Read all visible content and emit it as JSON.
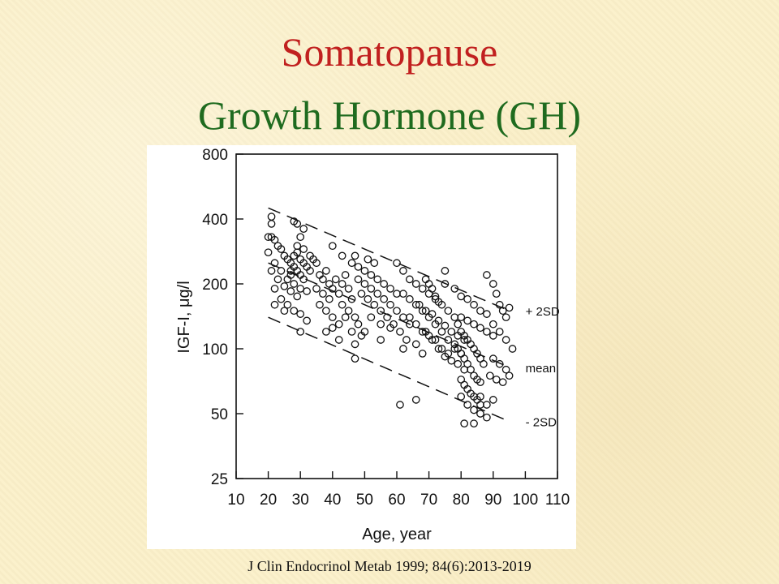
{
  "slide": {
    "title": "Somatopause",
    "subtitle": "Growth Hormone (GH)",
    "citation": "J Clin Endocrinol Metab 1999; 84(6):2013-2019",
    "colors": {
      "title": "#c1201f",
      "subtitle": "#1f6b1f",
      "background": "#fbf0c9"
    }
  },
  "chart_data": {
    "type": "scatter",
    "title": "",
    "xlabel": "Age, year",
    "ylabel": "IGF-I, μg/l",
    "xlim": [
      10,
      110
    ],
    "ylim": [
      25,
      800
    ],
    "yscale": "log",
    "xticks": [
      10,
      20,
      30,
      40,
      50,
      60,
      70,
      80,
      90,
      100,
      110
    ],
    "yticks": [
      25,
      50,
      100,
      200,
      400,
      800
    ],
    "grid": false,
    "legend": "none",
    "lines": [
      {
        "name": "+ 2SD",
        "style": "dashed",
        "x": [
          20,
          95
        ],
        "y": [
          450,
          150
        ]
      },
      {
        "name": "mean",
        "style": "dashed",
        "x": [
          20,
          95
        ],
        "y": [
          250,
          82
        ]
      },
      {
        "name": "- 2SD",
        "style": "dashed",
        "x": [
          20,
          95
        ],
        "y": [
          140,
          46
        ]
      }
    ],
    "points": [
      [
        21,
        410
      ],
      [
        21,
        380
      ],
      [
        20,
        330
      ],
      [
        21,
        330
      ],
      [
        22,
        320
      ],
      [
        23,
        300
      ],
      [
        24,
        290
      ],
      [
        25,
        270
      ],
      [
        26,
        260
      ],
      [
        27,
        250
      ],
      [
        28,
        240
      ],
      [
        29,
        230
      ],
      [
        30,
        220
      ],
      [
        31,
        210
      ],
      [
        20,
        280
      ],
      [
        22,
        250
      ],
      [
        24,
        230
      ],
      [
        26,
        210
      ],
      [
        28,
        200
      ],
      [
        30,
        190
      ],
      [
        32,
        185
      ],
      [
        23,
        210
      ],
      [
        25,
        195
      ],
      [
        27,
        185
      ],
      [
        29,
        175
      ],
      [
        21,
        230
      ],
      [
        22,
        190
      ],
      [
        24,
        170
      ],
      [
        26,
        160
      ],
      [
        28,
        150
      ],
      [
        30,
        145
      ],
      [
        32,
        135
      ],
      [
        22,
        160
      ],
      [
        25,
        150
      ],
      [
        27,
        230
      ],
      [
        28,
        270
      ],
      [
        29,
        300
      ],
      [
        30,
        330
      ],
      [
        31,
        360
      ],
      [
        28,
        390
      ],
      [
        29,
        380
      ],
      [
        30,
        260
      ],
      [
        31,
        250
      ],
      [
        32,
        240
      ],
      [
        27,
        220
      ],
      [
        29,
        280
      ],
      [
        31,
        290
      ],
      [
        33,
        270
      ],
      [
        34,
        260
      ],
      [
        33,
        230
      ],
      [
        30,
        120
      ],
      [
        35,
        250
      ],
      [
        36,
        220
      ],
      [
        37,
        210
      ],
      [
        38,
        230
      ],
      [
        39,
        200
      ],
      [
        40,
        190
      ],
      [
        35,
        190
      ],
      [
        37,
        180
      ],
      [
        39,
        170
      ],
      [
        36,
        160
      ],
      [
        38,
        150
      ],
      [
        40,
        140
      ],
      [
        41,
        210
      ],
      [
        42,
        180
      ],
      [
        43,
        200
      ],
      [
        44,
        220
      ],
      [
        45,
        190
      ],
      [
        46,
        170
      ],
      [
        43,
        160
      ],
      [
        45,
        150
      ],
      [
        47,
        140
      ],
      [
        38,
        120
      ],
      [
        40,
        125
      ],
      [
        42,
        130
      ],
      [
        44,
        140
      ],
      [
        46,
        120
      ],
      [
        48,
        130
      ],
      [
        50,
        120
      ],
      [
        42,
        110
      ],
      [
        47,
        105
      ],
      [
        49,
        115
      ],
      [
        40,
        300
      ],
      [
        43,
        270
      ],
      [
        46,
        250
      ],
      [
        48,
        240
      ],
      [
        50,
        230
      ],
      [
        52,
        220
      ],
      [
        54,
        210
      ],
      [
        56,
        200
      ],
      [
        58,
        190
      ],
      [
        60,
        180
      ],
      [
        47,
        270
      ],
      [
        51,
        260
      ],
      [
        53,
        250
      ],
      [
        48,
        210
      ],
      [
        50,
        200
      ],
      [
        52,
        190
      ],
      [
        54,
        180
      ],
      [
        56,
        170
      ],
      [
        58,
        160
      ],
      [
        60,
        150
      ],
      [
        62,
        140
      ],
      [
        64,
        130
      ],
      [
        49,
        180
      ],
      [
        51,
        170
      ],
      [
        53,
        160
      ],
      [
        55,
        150
      ],
      [
        57,
        140
      ],
      [
        59,
        130
      ],
      [
        61,
        120
      ],
      [
        63,
        110
      ],
      [
        52,
        140
      ],
      [
        55,
        130
      ],
      [
        58,
        125
      ],
      [
        62,
        100
      ],
      [
        66,
        105
      ],
      [
        68,
        95
      ],
      [
        47,
        90
      ],
      [
        55,
        110
      ],
      [
        61,
        55
      ],
      [
        66,
        58
      ],
      [
        60,
        250
      ],
      [
        62,
        230
      ],
      [
        64,
        210
      ],
      [
        66,
        200
      ],
      [
        68,
        190
      ],
      [
        70,
        180
      ],
      [
        72,
        170
      ],
      [
        74,
        160
      ],
      [
        76,
        150
      ],
      [
        78,
        140
      ],
      [
        62,
        180
      ],
      [
        64,
        170
      ],
      [
        66,
        160
      ],
      [
        68,
        150
      ],
      [
        70,
        140
      ],
      [
        72,
        130
      ],
      [
        74,
        120
      ],
      [
        76,
        110
      ],
      [
        78,
        100
      ],
      [
        80,
        95
      ],
      [
        64,
        140
      ],
      [
        66,
        130
      ],
      [
        68,
        120
      ],
      [
        70,
        115
      ],
      [
        72,
        110
      ],
      [
        74,
        100
      ],
      [
        76,
        95
      ],
      [
        69,
        210
      ],
      [
        70,
        200
      ],
      [
        71,
        190
      ],
      [
        72,
        175
      ],
      [
        73,
        165
      ],
      [
        75,
        200
      ],
      [
        67,
        160
      ],
      [
        69,
        150
      ],
      [
        71,
        145
      ],
      [
        73,
        135
      ],
      [
        75,
        128
      ],
      [
        77,
        120
      ],
      [
        79,
        115
      ],
      [
        81,
        110
      ],
      [
        69,
        120
      ],
      [
        71,
        110
      ],
      [
        73,
        100
      ],
      [
        75,
        92
      ],
      [
        77,
        88
      ],
      [
        79,
        85
      ],
      [
        81,
        80
      ],
      [
        75,
        230
      ],
      [
        78,
        190
      ],
      [
        80,
        175
      ],
      [
        82,
        170
      ],
      [
        84,
        160
      ],
      [
        86,
        150
      ],
      [
        88,
        145
      ],
      [
        80,
        140
      ],
      [
        82,
        135
      ],
      [
        84,
        130
      ],
      [
        86,
        125
      ],
      [
        88,
        120
      ],
      [
        90,
        115
      ],
      [
        79,
        130
      ],
      [
        80,
        120
      ],
      [
        81,
        115
      ],
      [
        82,
        110
      ],
      [
        83,
        105
      ],
      [
        84,
        100
      ],
      [
        85,
        95
      ],
      [
        86,
        90
      ],
      [
        87,
        85
      ],
      [
        78,
        105
      ],
      [
        79,
        100
      ],
      [
        80,
        95
      ],
      [
        81,
        90
      ],
      [
        82,
        85
      ],
      [
        83,
        80
      ],
      [
        84,
        75
      ],
      [
        85,
        72
      ],
      [
        86,
        70
      ],
      [
        80,
        72
      ],
      [
        81,
        68
      ],
      [
        82,
        65
      ],
      [
        83,
        62
      ],
      [
        84,
        60
      ],
      [
        85,
        58
      ],
      [
        86,
        55
      ],
      [
        80,
        60
      ],
      [
        82,
        55
      ],
      [
        84,
        52
      ],
      [
        86,
        50
      ],
      [
        88,
        48
      ],
      [
        81,
        45
      ],
      [
        84,
        45
      ],
      [
        86,
        60
      ],
      [
        88,
        55
      ],
      [
        90,
        58
      ],
      [
        88,
        220
      ],
      [
        90,
        200
      ],
      [
        91,
        180
      ],
      [
        92,
        160
      ],
      [
        93,
        150
      ],
      [
        94,
        140
      ],
      [
        95,
        155
      ],
      [
        90,
        130
      ],
      [
        92,
        120
      ],
      [
        94,
        110
      ],
      [
        96,
        100
      ],
      [
        90,
        90
      ],
      [
        92,
        85
      ],
      [
        94,
        80
      ],
      [
        95,
        75
      ],
      [
        89,
        75
      ],
      [
        91,
        72
      ],
      [
        93,
        70
      ]
    ]
  }
}
